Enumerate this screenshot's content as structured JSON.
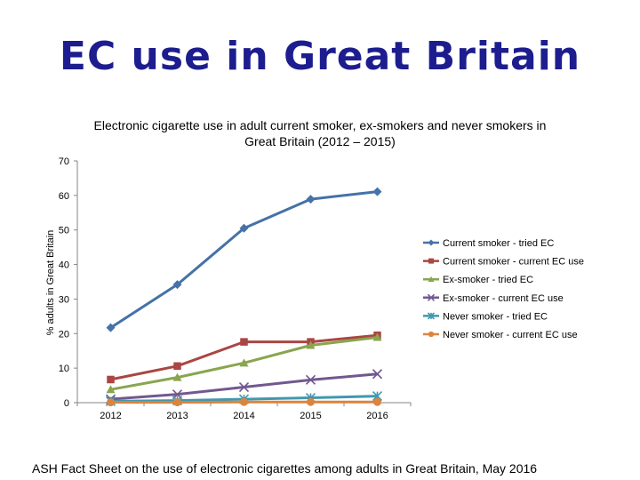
{
  "slide": {
    "title": "EC use in Great Britain",
    "footer": "ASH Fact Sheet on the use of electronic cigarettes among adults in Great Britain, May 2016"
  },
  "chart_data": {
    "type": "line",
    "title": "Electronic cigarette use in adult current smoker, ex-smokers and never smokers in Great Britain (2012 – 2015)",
    "xlabel": "",
    "ylabel": "% adults in Great Britain",
    "categories": [
      "2012",
      "2013",
      "2014",
      "2015",
      "2016"
    ],
    "ylim": [
      0,
      70
    ],
    "yticks": [
      0,
      10,
      20,
      30,
      40,
      50,
      60,
      70
    ],
    "grid": false,
    "legend_position": "right",
    "series": [
      {
        "name": "Current smoker - tried EC",
        "values": [
          21.7,
          34.2,
          50.5,
          58.9,
          61.1
        ],
        "color": "#4572a7",
        "marker": "diamond"
      },
      {
        "name": "Current smoker - current EC use",
        "values": [
          6.7,
          10.6,
          17.6,
          17.6,
          19.5
        ],
        "color": "#aa4643",
        "marker": "square"
      },
      {
        "name": "Ex-smoker - tried EC",
        "values": [
          3.8,
          7.3,
          11.5,
          16.6,
          18.9
        ],
        "color": "#89a54e",
        "marker": "triangle"
      },
      {
        "name": "Ex-smoker - current EC use",
        "values": [
          1.0,
          2.4,
          4.5,
          6.6,
          8.3
        ],
        "color": "#71588f",
        "marker": "x"
      },
      {
        "name": "Never smoker - tried EC",
        "values": [
          0.4,
          0.6,
          1.0,
          1.4,
          1.9
        ],
        "color": "#4198af",
        "marker": "star"
      },
      {
        "name": "Never smoker - current EC use",
        "values": [
          0.1,
          0.1,
          0.2,
          0.2,
          0.2
        ],
        "color": "#db843d",
        "marker": "circle"
      }
    ]
  }
}
